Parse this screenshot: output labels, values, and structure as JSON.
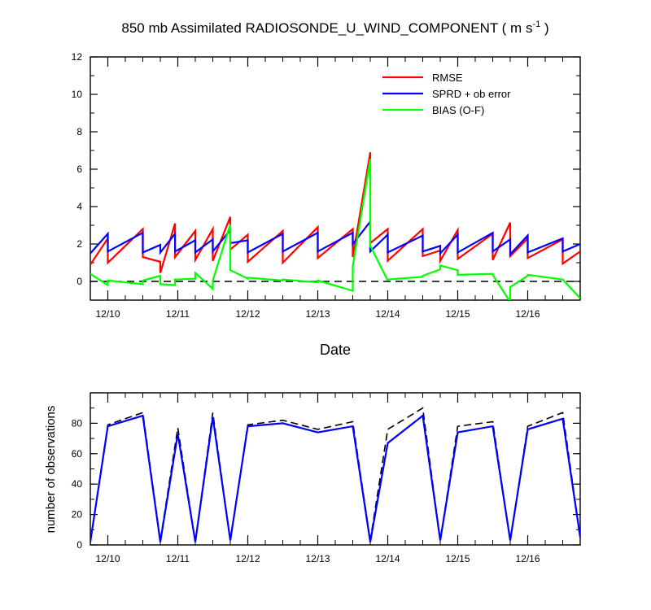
{
  "chart_data": [
    {
      "type": "line",
      "title": {
        "main": "850 mb Assimilated RADIOSONDE_U_WIND_COMPONENT ( m s",
        "sup": "-1",
        "tail": " )"
      },
      "xlabel": "Date",
      "ylabel": "",
      "xlim": [
        -0.25,
        6.75
      ],
      "ylim": [
        -1,
        12
      ],
      "xticks": [
        {
          "x": 0,
          "label": "12/10"
        },
        {
          "x": 1,
          "label": "12/11"
        },
        {
          "x": 2,
          "label": "12/12"
        },
        {
          "x": 3,
          "label": "12/13"
        },
        {
          "x": 4,
          "label": "12/14"
        },
        {
          "x": 5,
          "label": "12/15"
        },
        {
          "x": 6,
          "label": "12/16"
        }
      ],
      "yticks": [
        0,
        2,
        4,
        6,
        8,
        10,
        12
      ],
      "zero_line": {
        "y": 0,
        "style": "dashed",
        "color": "#000000"
      },
      "legend_position": "top-right",
      "series": [
        {
          "name": "RMSE",
          "color": "#ff0000",
          "points": [
            [
              -0.25,
              0.9
            ],
            [
              0,
              2.3
            ],
            [
              0,
              1.0
            ],
            [
              0.5,
              2.8
            ],
            [
              0.5,
              1.3
            ],
            [
              0.75,
              1.05
            ],
            [
              0.75,
              0.45
            ],
            [
              0.96,
              3.1
            ],
            [
              0.96,
              1.3
            ],
            [
              1.25,
              2.7
            ],
            [
              1.25,
              1.15
            ],
            [
              1.5,
              2.8
            ],
            [
              1.5,
              1.1
            ],
            [
              1.75,
              3.45
            ],
            [
              1.75,
              1.7
            ],
            [
              2,
              2.5
            ],
            [
              2,
              1.05
            ],
            [
              2.5,
              2.7
            ],
            [
              2.5,
              1.0
            ],
            [
              3,
              2.9
            ],
            [
              3,
              1.25
            ],
            [
              3.5,
              2.8
            ],
            [
              3.5,
              1.3
            ],
            [
              3.75,
              6.9
            ],
            [
              3.75,
              2.05
            ],
            [
              4,
              2.8
            ],
            [
              4,
              1.1
            ],
            [
              4.5,
              2.8
            ],
            [
              4.5,
              1.35
            ],
            [
              4.75,
              1.65
            ],
            [
              4.75,
              1.1
            ],
            [
              5,
              2.75
            ],
            [
              5,
              1.2
            ],
            [
              5.5,
              2.55
            ],
            [
              5.5,
              1.15
            ],
            [
              5.75,
              3.15
            ],
            [
              5.75,
              1.35
            ],
            [
              6,
              2.3
            ],
            [
              6,
              1.25
            ],
            [
              6.5,
              2.25
            ],
            [
              6.5,
              0.95
            ],
            [
              6.75,
              1.6
            ]
          ]
        },
        {
          "name": "SPRD + ob error",
          "color": "#0000ff",
          "points": [
            [
              -0.25,
              1.5
            ],
            [
              0,
              2.55
            ],
            [
              0,
              1.6
            ],
            [
              0.5,
              2.6
            ],
            [
              0.5,
              1.55
            ],
            [
              0.75,
              1.95
            ],
            [
              0.75,
              1.55
            ],
            [
              0.96,
              2.55
            ],
            [
              0.96,
              1.6
            ],
            [
              1.25,
              2.2
            ],
            [
              1.25,
              1.55
            ],
            [
              1.5,
              2.25
            ],
            [
              1.5,
              1.6
            ],
            [
              1.75,
              2.75
            ],
            [
              1.75,
              2.05
            ],
            [
              2,
              2.2
            ],
            [
              2,
              1.55
            ],
            [
              2.5,
              2.55
            ],
            [
              2.5,
              1.6
            ],
            [
              3,
              2.6
            ],
            [
              3,
              1.6
            ],
            [
              3.5,
              2.6
            ],
            [
              3.5,
              2.0
            ],
            [
              3.75,
              3.2
            ],
            [
              3.75,
              1.6
            ],
            [
              4,
              2.5
            ],
            [
              4,
              1.55
            ],
            [
              4.5,
              2.45
            ],
            [
              4.5,
              1.6
            ],
            [
              4.75,
              1.9
            ],
            [
              4.75,
              1.5
            ],
            [
              5,
              2.5
            ],
            [
              5,
              1.55
            ],
            [
              5.5,
              2.6
            ],
            [
              5.5,
              1.6
            ],
            [
              5.75,
              2.25
            ],
            [
              5.75,
              1.45
            ],
            [
              6,
              2.45
            ],
            [
              6,
              1.55
            ],
            [
              6.5,
              2.3
            ],
            [
              6.5,
              1.6
            ],
            [
              6.75,
              2.0
            ]
          ]
        },
        {
          "name": "BIAS (O-F)",
          "color": "#00ff00",
          "points": [
            [
              -0.25,
              0.4
            ],
            [
              0,
              -0.2
            ],
            [
              0,
              0.05
            ],
            [
              0.5,
              -0.15
            ],
            [
              0.5,
              0.05
            ],
            [
              0.75,
              0.3
            ],
            [
              0.75,
              -0.15
            ],
            [
              0.96,
              -0.2
            ],
            [
              0.96,
              0.1
            ],
            [
              1.25,
              0.15
            ],
            [
              1.25,
              0.45
            ],
            [
              1.5,
              -0.4
            ],
            [
              1.5,
              0.05
            ],
            [
              1.75,
              3.05
            ],
            [
              1.75,
              0.6
            ],
            [
              2,
              0.15
            ],
            [
              2,
              0.2
            ],
            [
              2.5,
              0.05
            ],
            [
              2.5,
              0.1
            ],
            [
              3,
              -0.05
            ],
            [
              3,
              0.05
            ],
            [
              3.5,
              -0.5
            ],
            [
              3.5,
              0.8
            ],
            [
              3.75,
              6.55
            ],
            [
              3.75,
              1.9
            ],
            [
              4,
              0.05
            ],
            [
              4,
              0.1
            ],
            [
              4.5,
              0.25
            ],
            [
              4.5,
              0.3
            ],
            [
              4.75,
              0.65
            ],
            [
              4.75,
              0.85
            ],
            [
              5,
              0.6
            ],
            [
              5,
              0.35
            ],
            [
              5.5,
              0.4
            ],
            [
              5.5,
              0.35
            ],
            [
              5.75,
              -1.1
            ],
            [
              5.75,
              -0.3
            ],
            [
              6,
              0.3
            ],
            [
              6,
              0.35
            ],
            [
              6.5,
              0.1
            ],
            [
              6.5,
              0.1
            ],
            [
              6.75,
              -0.9
            ]
          ]
        }
      ]
    },
    {
      "type": "line",
      "title": "",
      "xlabel": "",
      "ylabel": "number of observations",
      "xlim": [
        -0.25,
        6.75
      ],
      "ylim": [
        0,
        100
      ],
      "xticks": [
        {
          "x": 0,
          "label": "12/10"
        },
        {
          "x": 1,
          "label": "12/11"
        },
        {
          "x": 2,
          "label": "12/12"
        },
        {
          "x": 3,
          "label": "12/13"
        },
        {
          "x": 4,
          "label": "12/14"
        },
        {
          "x": 5,
          "label": "12/15"
        },
        {
          "x": 6,
          "label": "12/16"
        }
      ],
      "yticks": [
        0,
        20,
        40,
        60,
        80
      ],
      "series": [
        {
          "name": "",
          "color": "#000000",
          "style": "dashed",
          "x": [
            -0.25,
            0,
            0.5,
            0.75,
            1,
            1.25,
            1.5,
            1.75,
            2,
            2.5,
            3,
            3.5,
            3.75,
            4,
            4.5,
            4.75,
            5,
            5.5,
            5.75,
            6,
            6.5,
            6.75
          ],
          "values": [
            2,
            79,
            87,
            3,
            77,
            2,
            87,
            3,
            79,
            82,
            76,
            81,
            3,
            76,
            90,
            3,
            78,
            81,
            3,
            78,
            87,
            5
          ]
        },
        {
          "name": "",
          "color": "#0000ff",
          "style": "solid",
          "x": [
            -0.25,
            0,
            0.5,
            0.75,
            1,
            1.25,
            1.5,
            1.75,
            2,
            2.5,
            3,
            3.5,
            3.75,
            4,
            4.5,
            4.75,
            5,
            5.5,
            5.75,
            6,
            6.5,
            6.75
          ],
          "values": [
            2,
            78,
            85,
            2,
            73,
            2,
            84,
            3,
            78,
            80,
            74,
            78,
            2,
            67,
            85,
            3,
            74,
            78,
            3,
            76,
            83,
            5
          ]
        }
      ]
    }
  ]
}
